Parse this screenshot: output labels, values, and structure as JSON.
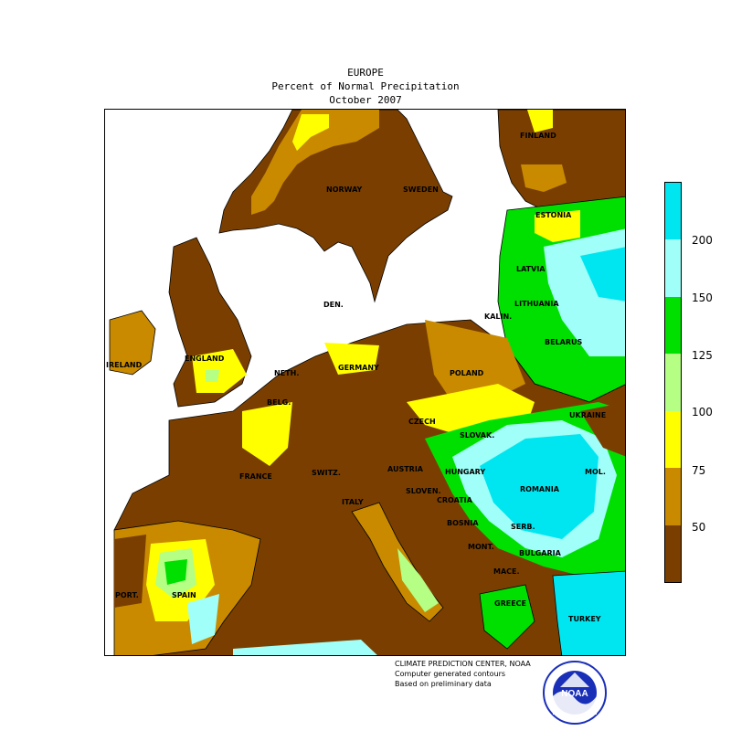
{
  "header": {
    "title": "EUROPE",
    "subtitle": "Percent of Normal Precipitation",
    "period": "October 2007"
  },
  "legend": {
    "colors": [
      "#00e6f0",
      "#a0fff8",
      "#00e000",
      "#b4ff84",
      "#ffff00",
      "#c98a00",
      "#7a3f00"
    ],
    "ticks": [
      "200",
      "150",
      "125",
      "100",
      "75",
      "50"
    ]
  },
  "countries": [
    {
      "key": "finland",
      "name": "FINLAND"
    },
    {
      "key": "norway",
      "name": "NORWAY"
    },
    {
      "key": "sweden",
      "name": "SWEDEN"
    },
    {
      "key": "estonia",
      "name": "ESTONIA"
    },
    {
      "key": "latvia",
      "name": "LATVIA"
    },
    {
      "key": "lithuania",
      "name": "LITHUANIA"
    },
    {
      "key": "den",
      "name": "DEN."
    },
    {
      "key": "kalin",
      "name": "KALIN."
    },
    {
      "key": "belarus",
      "name": "BELARUS"
    },
    {
      "key": "ireland",
      "name": "IRELAND"
    },
    {
      "key": "england",
      "name": "ENGLAND"
    },
    {
      "key": "neth",
      "name": "NETH."
    },
    {
      "key": "germany",
      "name": "GERMANY"
    },
    {
      "key": "poland",
      "name": "POLAND"
    },
    {
      "key": "belg",
      "name": "BELG."
    },
    {
      "key": "czech",
      "name": "CZECH"
    },
    {
      "key": "slovak",
      "name": "SLOVAK."
    },
    {
      "key": "ukraine",
      "name": "UKRAINE"
    },
    {
      "key": "france",
      "name": "FRANCE"
    },
    {
      "key": "switz",
      "name": "SWITZ."
    },
    {
      "key": "austria",
      "name": "AUSTRIA"
    },
    {
      "key": "hungary",
      "name": "HUNGARY"
    },
    {
      "key": "mol",
      "name": "MOL."
    },
    {
      "key": "sloven",
      "name": "SLOVEN."
    },
    {
      "key": "croatia",
      "name": "CROATIA"
    },
    {
      "key": "romania",
      "name": "ROMANIA"
    },
    {
      "key": "italy",
      "name": "ITALY"
    },
    {
      "key": "bosnia",
      "name": "BOSNIA"
    },
    {
      "key": "serb",
      "name": "SERB."
    },
    {
      "key": "mont",
      "name": "MONT."
    },
    {
      "key": "bulgaria",
      "name": "BULGARIA"
    },
    {
      "key": "mace",
      "name": "MACE."
    },
    {
      "key": "port",
      "name": "PORT."
    },
    {
      "key": "spain",
      "name": "SPAIN"
    },
    {
      "key": "greece",
      "name": "GREECE"
    },
    {
      "key": "turkey",
      "name": "TURKEY"
    }
  ],
  "credits": {
    "line1": "CLIMATE PREDICTION CENTER, NOAA",
    "line2": "Computer generated contours",
    "line3": "Based on preliminary data"
  },
  "logo": {
    "text": "NOAA",
    "ring_text": "NATIONAL OCEANIC AND ATMOSPHERIC ADMINISTRATION · U.S. DEPARTMENT OF COMMERCE"
  }
}
